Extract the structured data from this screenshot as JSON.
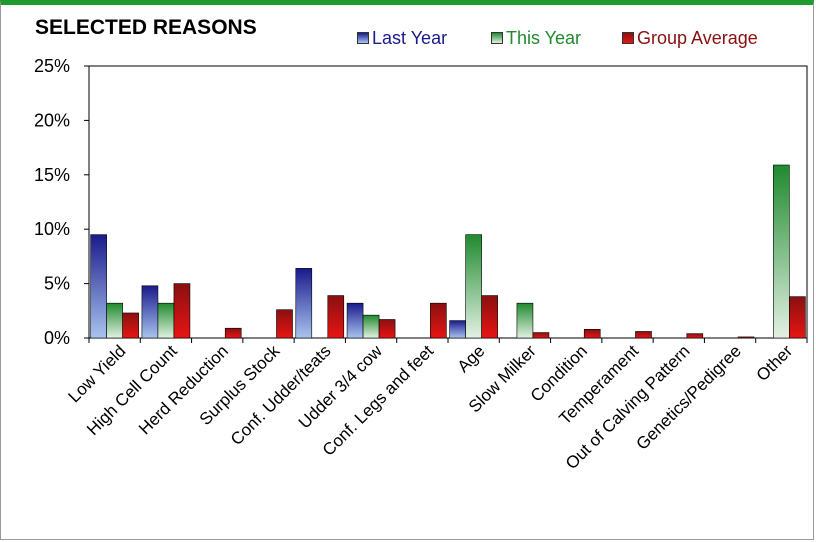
{
  "chart_data": {
    "type": "bar",
    "title": "SELECTED REASONS",
    "xlabel": "",
    "ylabel": "",
    "ylim": [
      0,
      25
    ],
    "yticks": [
      "0%",
      "5%",
      "10%",
      "15%",
      "20%",
      "25%"
    ],
    "yticks_values": [
      0,
      5,
      10,
      15,
      20,
      25
    ],
    "grid": false,
    "legend_position": "top",
    "categories": [
      "Low Yield",
      "High Cell Count",
      "Herd Reduction",
      "Surplus Stock",
      "Conf. Udder/teats",
      "Udder 3/4 cow",
      "Conf. Legs and feet",
      "Age",
      "Slow Milker",
      "Condition",
      "Temperament",
      "Out of Calving Pattern",
      "Genetics/Pedigree",
      "Other"
    ],
    "series": [
      {
        "name": "Last Year",
        "color": "#1a1a8c",
        "light": "#a9c4ef",
        "values": [
          9.5,
          4.8,
          0,
          0,
          6.4,
          3.2,
          0,
          1.6,
          0,
          0,
          0,
          0,
          0,
          0
        ]
      },
      {
        "name": "This Year",
        "color": "#1f8a2e",
        "light": "#e3f1e3",
        "values": [
          3.2,
          3.2,
          0,
          0,
          0,
          2.1,
          0,
          9.5,
          3.2,
          0,
          0,
          0,
          0,
          15.9
        ]
      },
      {
        "name": "Group Average",
        "color": "#8a1010",
        "light": "#e81414",
        "values": [
          2.3,
          5.0,
          0.9,
          2.6,
          3.9,
          1.7,
          3.2,
          3.9,
          0.5,
          0.8,
          0.6,
          0.4,
          0.1,
          3.8
        ]
      }
    ]
  }
}
